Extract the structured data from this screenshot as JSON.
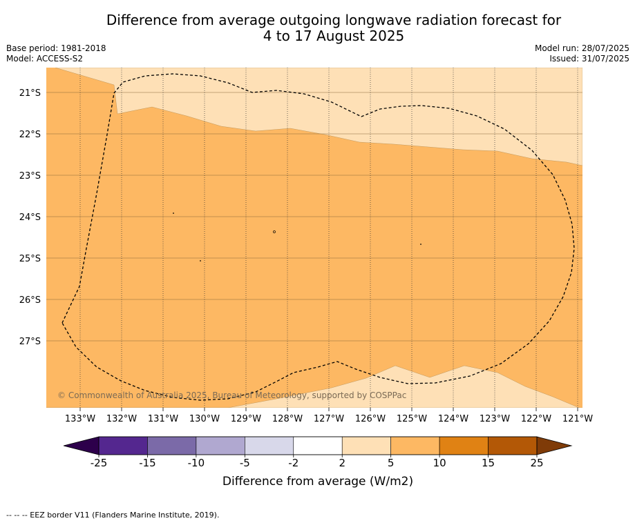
{
  "title_line1": "Difference from average outgoing longwave radiation forecast for",
  "title_line2": "4 to 17 August 2025",
  "base_period": "Base period: 1981-2018",
  "model": "Model: ACCESS-S2",
  "model_run": "Model run: 28/07/2025",
  "issued": "Issued: 31/07/2025",
  "copyright": "© Commonwealth of Australia 2025, Bureau of Meteorology, supported by COSPPac",
  "lat_labels": [
    "21°S",
    "22°S",
    "23°S",
    "24°S",
    "25°S",
    "26°S",
    "27°S"
  ],
  "lon_labels": [
    "133°W",
    "132°W",
    "131°W",
    "130°W",
    "129°W",
    "128°W",
    "127°W",
    "126°W",
    "125°W",
    "124°W",
    "123°W",
    "122°W",
    "121°W"
  ],
  "colorbar": {
    "label": "Difference from average (W/m2)",
    "ticks": [
      "-25",
      "-15",
      "-10",
      "-5",
      "-2",
      "2",
      "5",
      "10",
      "15",
      "25"
    ],
    "colors": [
      "#54278f",
      "#7b6aa8",
      "#b0a8d0",
      "#d8d8ea",
      "#ffffff",
      "#fee0b6",
      "#fdb863",
      "#e08214",
      "#b35806"
    ],
    "low_extend_color": "#2d004b",
    "high_extend_color": "#7f3b08"
  },
  "legend_footnote": "--  --  -- EEZ border V11 (Flanders Marine Institute, 2019).",
  "colors": {
    "band_2_5": "#fee0b6",
    "band_5_10": "#fdb863"
  }
}
